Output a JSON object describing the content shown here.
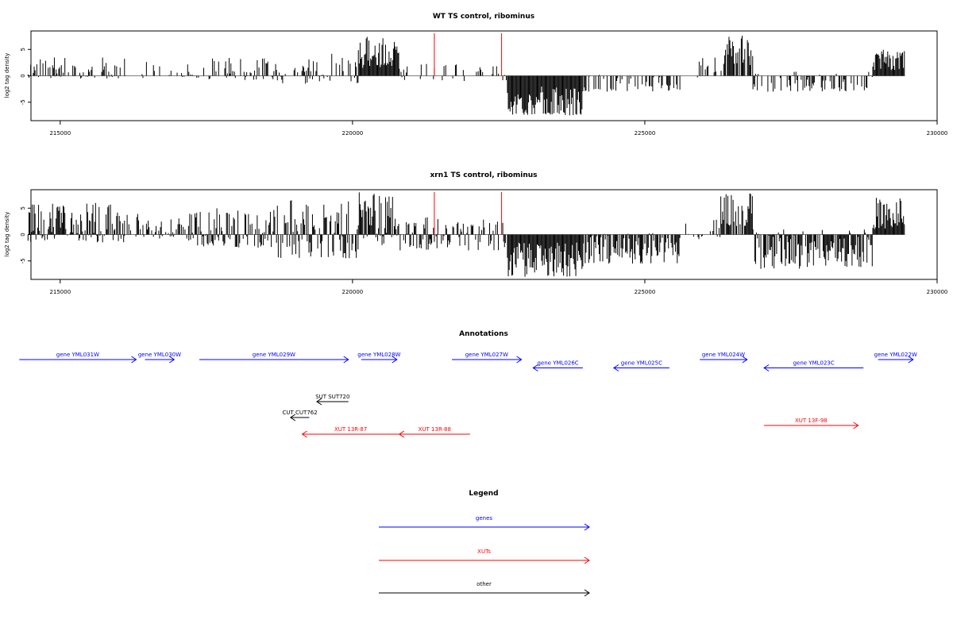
{
  "chart_data": [
    {
      "type": "bar",
      "title": "WT TS control, ribominus",
      "xlabel": "",
      "ylabel": "log2 tag density",
      "xlim": [
        214500,
        230000
      ],
      "ylim": [
        -8.5,
        8.5
      ],
      "xticks": [
        215000,
        220000,
        225000,
        230000
      ],
      "xtick_labels": [
        "215000",
        "220000",
        "225000",
        "230000"
      ],
      "yticks": [
        -5,
        0,
        5
      ],
      "ytick_labels": [
        "-5",
        "0",
        "5"
      ],
      "signal_range": [
        214450,
        229450
      ],
      "segments": [
        {
          "x0": 214450,
          "x1": 216150,
          "min": -0.5,
          "max": 3.5,
          "density": 0.55,
          "seed": 11
        },
        {
          "x0": 216400,
          "x1": 217200,
          "min": -0.6,
          "max": 2.8,
          "density": 0.25,
          "seed": 12
        },
        {
          "x0": 217200,
          "x1": 218700,
          "min": -0.8,
          "max": 3.5,
          "density": 0.5,
          "seed": 13
        },
        {
          "x0": 218700,
          "x1": 220100,
          "min": -1.5,
          "max": 4.2,
          "density": 0.5,
          "seed": 14
        },
        {
          "x0": 220100,
          "x1": 220800,
          "min": 1.5,
          "max": 7.5,
          "density": 1.0,
          "seed": 15
        },
        {
          "x0": 220800,
          "x1": 222650,
          "min": -1.0,
          "max": 2.5,
          "density": 0.25,
          "seed": 16
        },
        {
          "x0": 222650,
          "x1": 223950,
          "min": -7.5,
          "max": -2.0,
          "density": 1.0,
          "seed": 17
        },
        {
          "x0": 223950,
          "x1": 225600,
          "min": -3.0,
          "max": 0.3,
          "density": 0.4,
          "seed": 18
        },
        {
          "x0": 225900,
          "x1": 226350,
          "min": -0.3,
          "max": 3.5,
          "density": 0.25,
          "seed": 19
        },
        {
          "x0": 226350,
          "x1": 226850,
          "min": 2.0,
          "max": 8.0,
          "density": 0.9,
          "seed": 20
        },
        {
          "x0": 226850,
          "x1": 228900,
          "min": -3.0,
          "max": 1.0,
          "density": 0.45,
          "seed": 21
        },
        {
          "x0": 228900,
          "x1": 229450,
          "min": 1.0,
          "max": 5.0,
          "density": 1.0,
          "seed": 22
        }
      ],
      "markers": [
        221400,
        222550
      ],
      "marker_color": "#ff0000"
    },
    {
      "type": "bar",
      "title": "xrn1 TS control, ribominus",
      "xlabel": "",
      "ylabel": "log2 tag density",
      "xlim": [
        214500,
        230000
      ],
      "ylim": [
        -8.5,
        8.5
      ],
      "xticks": [
        215000,
        220000,
        225000,
        230000
      ],
      "xtick_labels": [
        "215000",
        "220000",
        "225000",
        "230000"
      ],
      "yticks": [
        -5,
        0,
        5
      ],
      "ytick_labels": [
        "-5",
        "0",
        "5"
      ],
      "signal_range": [
        214450,
        229450
      ],
      "segments": [
        {
          "x0": 214450,
          "x1": 216100,
          "min": -1.5,
          "max": 6.0,
          "density": 0.9,
          "seed": 31
        },
        {
          "x0": 216100,
          "x1": 217200,
          "min": -0.8,
          "max": 4.0,
          "density": 0.6,
          "seed": 32
        },
        {
          "x0": 217200,
          "x1": 218700,
          "min": -2.5,
          "max": 5.0,
          "density": 0.8,
          "seed": 33
        },
        {
          "x0": 218700,
          "x1": 220100,
          "min": -4.5,
          "max": 6.5,
          "density": 0.8,
          "seed": 34
        },
        {
          "x0": 220100,
          "x1": 220800,
          "min": -2.0,
          "max": 8.5,
          "density": 1.0,
          "seed": 35
        },
        {
          "x0": 220800,
          "x1": 222650,
          "min": -3.0,
          "max": 3.5,
          "density": 0.6,
          "seed": 36
        },
        {
          "x0": 222650,
          "x1": 223950,
          "min": -8.0,
          "max": -1.5,
          "density": 1.0,
          "seed": 37
        },
        {
          "x0": 223950,
          "x1": 225600,
          "min": -5.5,
          "max": 0.3,
          "density": 0.8,
          "seed": 38
        },
        {
          "x0": 225700,
          "x1": 226300,
          "min": -1.0,
          "max": 3.0,
          "density": 0.3,
          "seed": 39
        },
        {
          "x0": 226300,
          "x1": 226850,
          "min": 1.5,
          "max": 8.0,
          "density": 0.9,
          "seed": 40
        },
        {
          "x0": 226850,
          "x1": 228900,
          "min": -6.5,
          "max": 1.0,
          "density": 0.85,
          "seed": 41
        },
        {
          "x0": 228900,
          "x1": 229450,
          "min": 1.0,
          "max": 7.0,
          "density": 1.0,
          "seed": 42
        }
      ],
      "markers": [
        221400,
        222550
      ],
      "marker_color": "#ff0000"
    }
  ],
  "annotations": {
    "title": "Annotations",
    "features": [
      {
        "label": "gene YML031W",
        "x0": 214300,
        "x1": 216300,
        "strand": "+",
        "row": 0,
        "color": "#0000ff"
      },
      {
        "label": "gene YML030W",
        "x0": 216450,
        "x1": 216950,
        "strand": "+",
        "row": 0,
        "color": "#0000ff"
      },
      {
        "label": "gene YML029W",
        "x0": 217380,
        "x1": 219930,
        "strand": "+",
        "row": 0,
        "color": "#0000ff"
      },
      {
        "label": "gene YML028W",
        "x0": 220150,
        "x1": 220760,
        "strand": "+",
        "row": 0,
        "color": "#0000ff"
      },
      {
        "label": "gene YML027W",
        "x0": 221700,
        "x1": 222890,
        "strand": "+",
        "row": 0,
        "color": "#0000ff"
      },
      {
        "label": "gene YML026C",
        "x0": 223090,
        "x1": 223940,
        "strand": "-",
        "row": 1,
        "color": "#0000ff"
      },
      {
        "label": "gene YML025C",
        "x0": 224470,
        "x1": 225420,
        "strand": "-",
        "row": 1,
        "color": "#0000ff"
      },
      {
        "label": "gene YML024W",
        "x0": 225940,
        "x1": 226750,
        "strand": "+",
        "row": 0,
        "color": "#0000ff"
      },
      {
        "label": "gene YML023C",
        "x0": 227040,
        "x1": 228740,
        "strand": "-",
        "row": 1,
        "color": "#0000ff"
      },
      {
        "label": "gene YML022W",
        "x0": 228990,
        "x1": 229590,
        "strand": "+",
        "row": 0,
        "color": "#0000ff"
      },
      {
        "label": "SUT SUT720",
        "x0": 219390,
        "x1": 219930,
        "strand": "-",
        "row": 2,
        "color": "#000000"
      },
      {
        "label": "CUT CUT762",
        "x0": 218940,
        "x1": 219260,
        "strand": "-",
        "row": 3,
        "color": "#000000"
      },
      {
        "label": "XUT 13R-87",
        "x0": 219140,
        "x1": 220800,
        "strand": "-",
        "row": 4,
        "color": "#ff0000"
      },
      {
        "label": "XUT 13R-88",
        "x0": 220800,
        "x1": 222010,
        "strand": "-",
        "row": 4,
        "color": "#ff0000"
      },
      {
        "label": "XUT 13F-98",
        "x0": 227040,
        "x1": 228650,
        "strand": "+",
        "row": 4.5,
        "color": "#ff0000"
      }
    ]
  },
  "legend": {
    "title": "Legend",
    "items": [
      {
        "label": "genes",
        "color": "#0000ff"
      },
      {
        "label": "XUTs",
        "color": "#ff0000"
      },
      {
        "label": "other",
        "color": "#000000"
      }
    ]
  }
}
